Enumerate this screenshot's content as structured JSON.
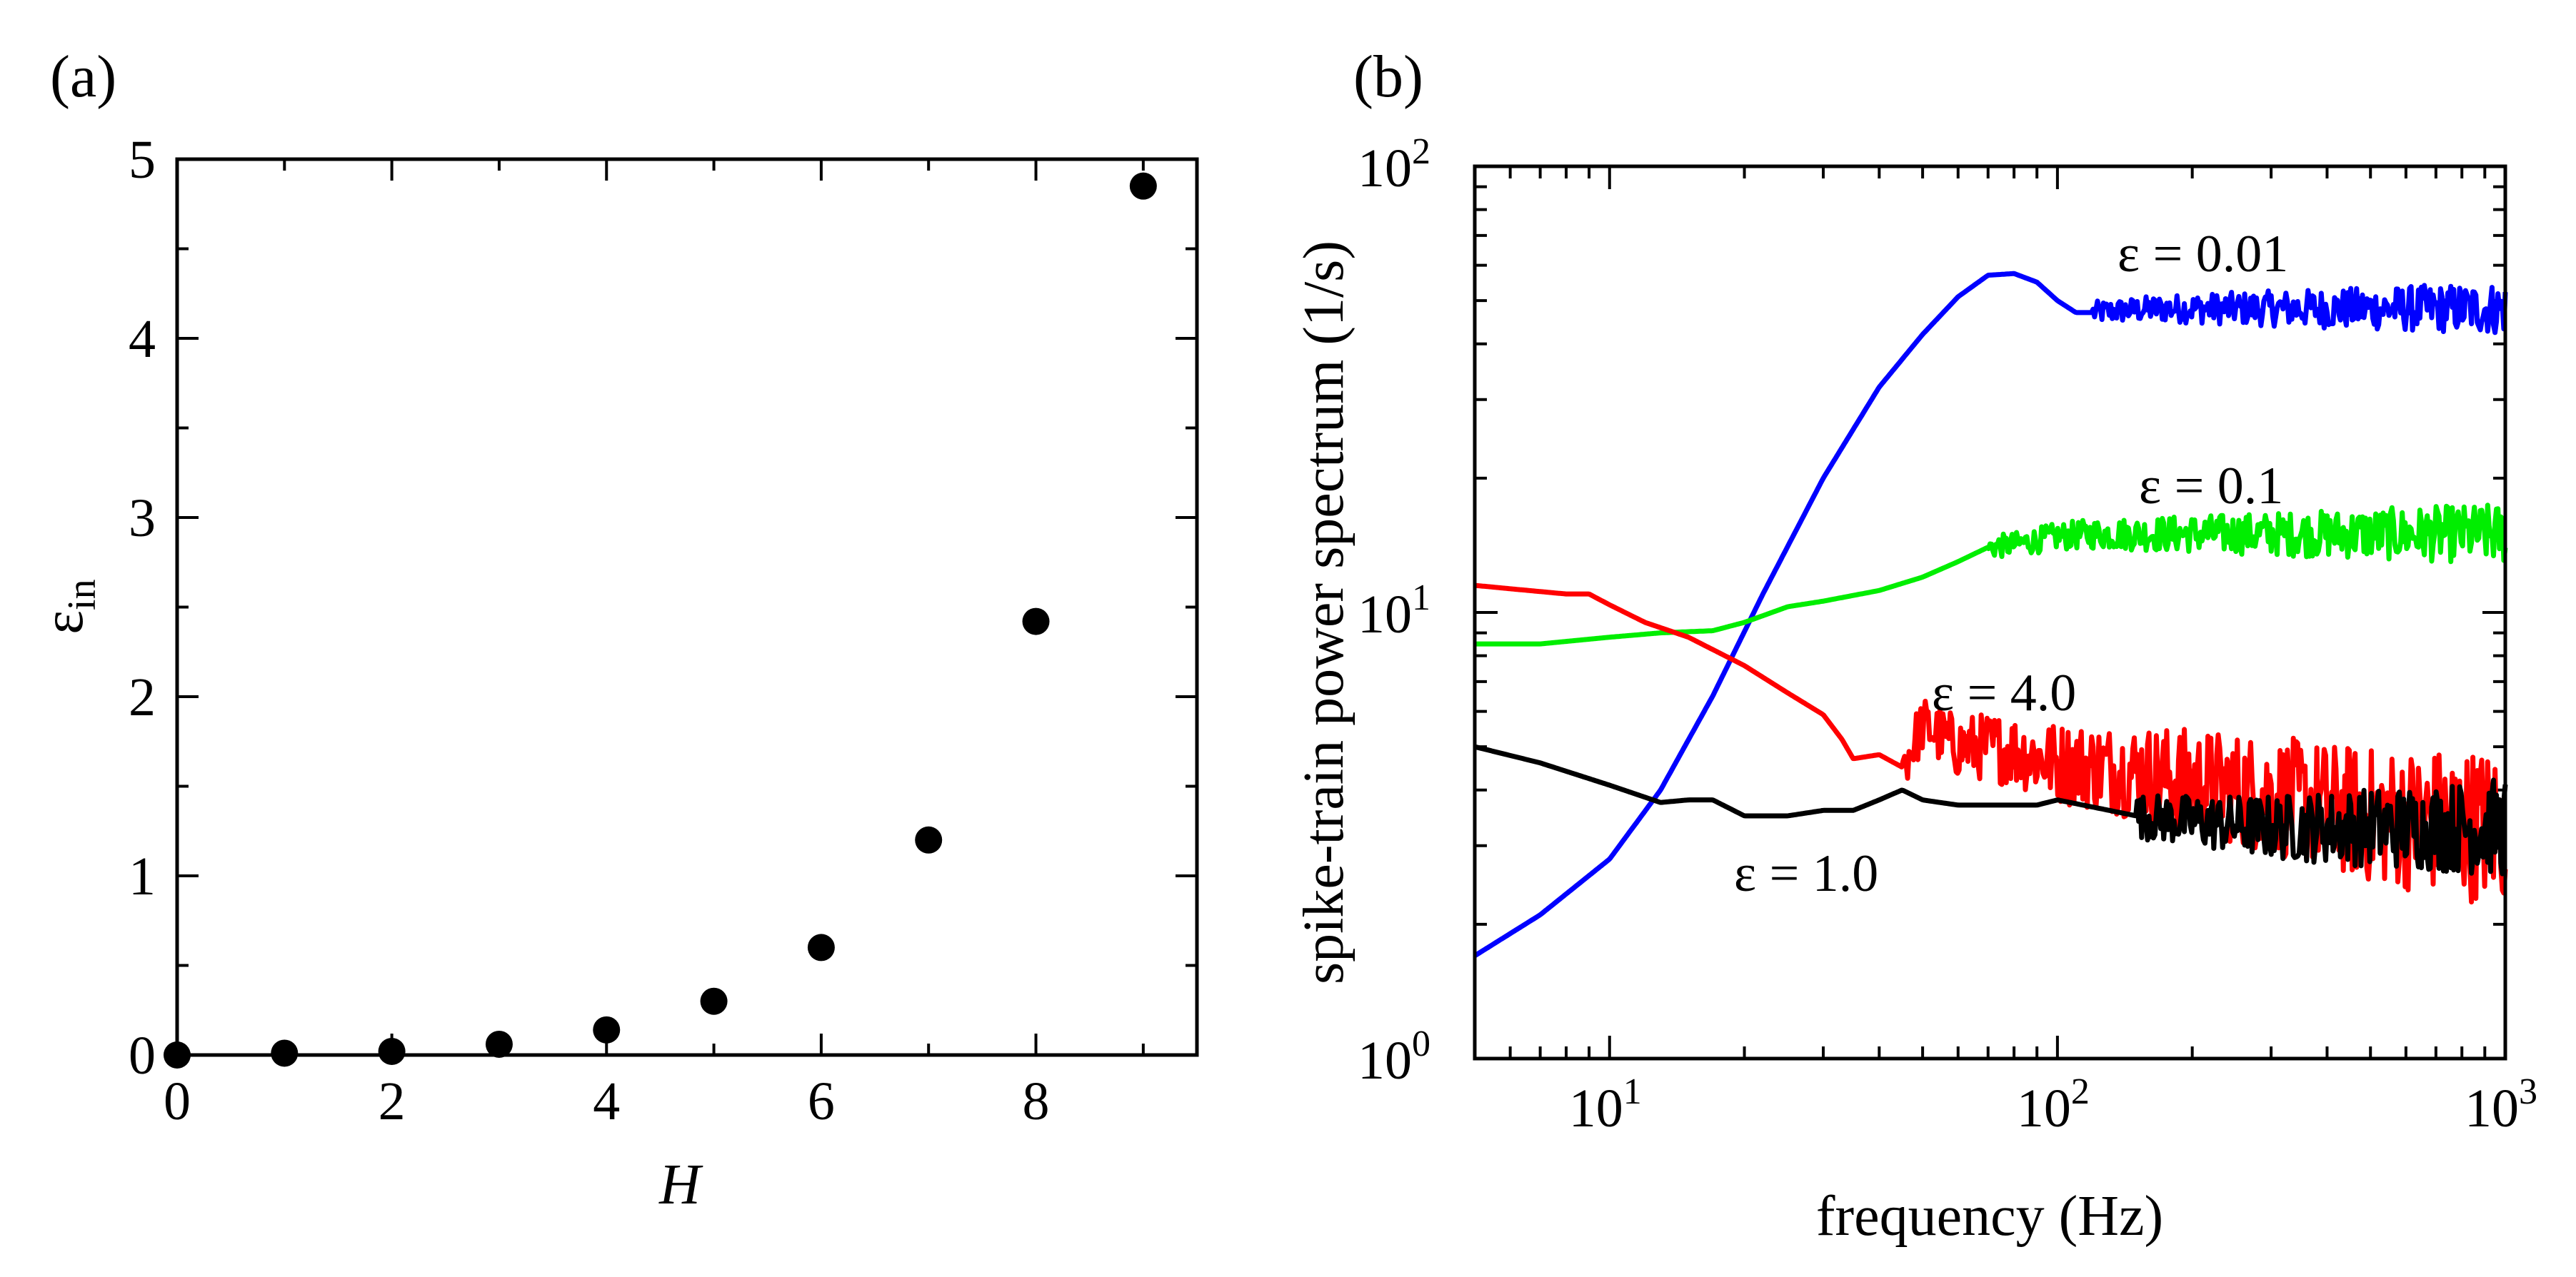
{
  "chart_data": [
    {
      "panel_label": "(a)",
      "type": "scatter",
      "xlabel": "H",
      "ylabel_base": "ε",
      "ylabel_sub": "in",
      "xlim": [
        0,
        9.5
      ],
      "ylim": [
        0,
        5
      ],
      "x_ticks": [
        0,
        2,
        4,
        6,
        8
      ],
      "x_tick_labels": [
        "0",
        "2",
        "4",
        "6",
        "8"
      ],
      "y_ticks": [
        0,
        1,
        2,
        3,
        4,
        5
      ],
      "y_tick_labels": [
        "0",
        "1",
        "2",
        "3",
        "4",
        "5"
      ],
      "grid": false,
      "marker_color": "#000000",
      "series": [
        {
          "name": "ε_in vs H",
          "x": [
            0,
            1,
            2,
            3,
            4,
            5,
            6,
            7,
            8,
            9
          ],
          "y": [
            0.0,
            0.01,
            0.02,
            0.06,
            0.14,
            0.3,
            0.6,
            1.2,
            2.42,
            4.85
          ]
        }
      ]
    },
    {
      "panel_label": "(b)",
      "type": "line",
      "xlabel": "frequency (Hz)",
      "ylabel": "spike-train power spectrum (1/s)",
      "xscale": "log",
      "yscale": "log",
      "xlim": [
        5,
        1000
      ],
      "ylim": [
        1,
        100
      ],
      "x_tick_labels": [
        {
          "base": "10",
          "exp": "1",
          "value": 10
        },
        {
          "base": "10",
          "exp": "2",
          "value": 100
        },
        {
          "base": "10",
          "exp": "3",
          "value": 1000
        }
      ],
      "y_tick_labels": [
        {
          "base": "10",
          "exp": "0",
          "value": 1
        },
        {
          "base": "10",
          "exp": "1",
          "value": 10
        },
        {
          "base": "10",
          "exp": "2",
          "value": 100
        }
      ],
      "grid": false,
      "series": [
        {
          "name": "ε = 0.01",
          "label": "ε  = 0.01",
          "color": "#0000ff",
          "x": [
            5,
            7,
            10,
            13,
            17,
            22,
            30,
            40,
            50,
            60,
            70,
            80,
            90,
            100,
            110,
            120,
            140,
            170,
            200,
            300,
            500,
            700,
            1000
          ],
          "y": [
            1.7,
            2.1,
            2.8,
            4.0,
            6.5,
            11.0,
            20.0,
            32.0,
            42.0,
            51.0,
            57.0,
            57.5,
            55.0,
            50.0,
            47.0,
            47.0,
            47.5,
            48.0,
            48.0,
            48.0,
            48.0,
            48.0,
            48.0
          ],
          "noise": 0.025,
          "noise_from": 120
        },
        {
          "name": "ε = 0.1",
          "label": "ε  = 0.1",
          "color": "#00ee00",
          "x": [
            5,
            7,
            10,
            13,
            17,
            20,
            25,
            30,
            40,
            50,
            60,
            70,
            80,
            100,
            120,
            150,
            200,
            300,
            500,
            700,
            1000
          ],
          "y": [
            8.5,
            8.5,
            8.8,
            9.0,
            9.1,
            9.5,
            10.3,
            10.6,
            11.2,
            12.0,
            13.0,
            14.0,
            14.2,
            14.8,
            15.0,
            15.0,
            15.0,
            15.0,
            15.0,
            15.0,
            15.0
          ],
          "noise": 0.025,
          "noise_from": 70
        },
        {
          "name": "ε = 4.0",
          "label": "ε = 4.0",
          "color": "#ff0000",
          "x": [
            5,
            6,
            8,
            9,
            10,
            12,
            15,
            20,
            25,
            30,
            33,
            35,
            40,
            45,
            50,
            60,
            70,
            80,
            100,
            150,
            200,
            300,
            500,
            700,
            1000
          ],
          "y": [
            11.5,
            11.3,
            11.0,
            11.0,
            10.4,
            9.5,
            8.8,
            7.6,
            6.6,
            5.9,
            5.2,
            4.7,
            4.8,
            4.5,
            5.6,
            5.0,
            5.0,
            4.9,
            4.6,
            4.4,
            4.2,
            3.9,
            3.5,
            3.4,
            3.3
          ],
          "noise": 0.06,
          "noise_from": 45
        },
        {
          "name": "ε = 1.0",
          "label": "ε  = 1.0",
          "color": "#000000",
          "x": [
            5,
            7,
            10,
            13,
            15,
            17,
            20,
            25,
            30,
            35,
            40,
            45,
            50,
            60,
            70,
            80,
            90,
            100,
            150,
            200,
            300,
            500,
            700,
            1000
          ],
          "y": [
            5.0,
            4.6,
            4.1,
            3.75,
            3.8,
            3.8,
            3.5,
            3.5,
            3.6,
            3.6,
            3.8,
            4.0,
            3.8,
            3.7,
            3.7,
            3.7,
            3.7,
            3.8,
            3.5,
            3.4,
            3.3,
            3.3,
            3.3,
            3.3
          ],
          "noise": 0.05,
          "noise_from": 150
        }
      ]
    }
  ]
}
